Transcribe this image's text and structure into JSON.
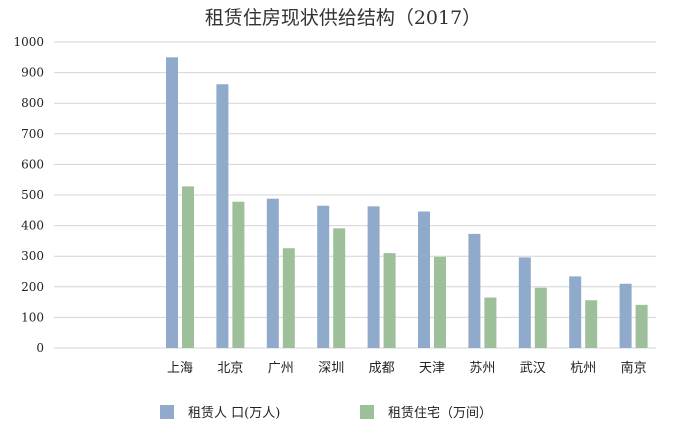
{
  "chart_data": {
    "type": "bar",
    "title": "租赁住房现状供给结构（2017）",
    "xlabel": "",
    "ylabel": "",
    "ylim": [
      0,
      1000
    ],
    "yticks": [
      "0",
      "100",
      "200",
      "300",
      "400",
      "500",
      "600",
      "700",
      "800",
      "900",
      "1000"
    ],
    "grid": true,
    "legend_position": "bottom",
    "categories": [
      "上海",
      "北京",
      "广州",
      "深圳",
      "成都",
      "天津",
      "苏州",
      "武汉",
      "杭州",
      "南京"
    ],
    "series": [
      {
        "name": "租赁人 口(万人)",
        "color": "#8faacb",
        "values": [
          950,
          862,
          488,
          465,
          463,
          446,
          373,
          296,
          234,
          210
        ]
      },
      {
        "name": "租赁住宅（万间）",
        "color": "#9dbf9a",
        "values": [
          528,
          478,
          326,
          391,
          310,
          298,
          165,
          197,
          156,
          141
        ]
      }
    ]
  }
}
